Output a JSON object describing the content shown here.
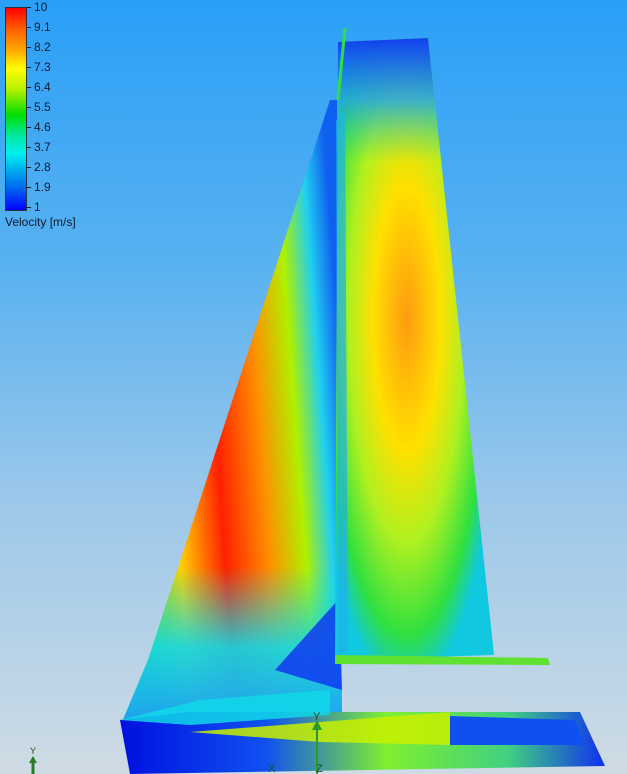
{
  "legend": {
    "ticks": [
      "10",
      "9.1",
      "8.2",
      "7.3",
      "6.4",
      "5.5",
      "4.6",
      "3.7",
      "2.8",
      "1.9",
      "1"
    ],
    "label": "Velocity [m/s]",
    "colors": [
      "#ff0000",
      "#ffff00",
      "#00e000",
      "#00f0f0",
      "#0000ff"
    ]
  },
  "axes_triad": {
    "y": "Y",
    "x": "X",
    "z": "Z"
  },
  "corner_triad": {
    "y": "Y"
  }
}
